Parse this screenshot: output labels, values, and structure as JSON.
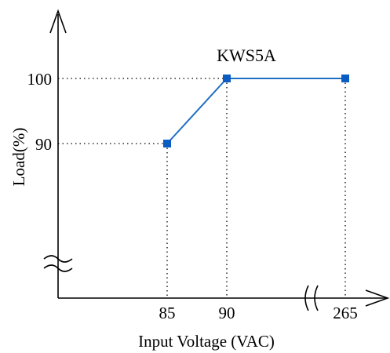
{
  "chart_data": {
    "type": "line",
    "title": "KWS5A",
    "xlabel": "Input Voltage (VAC)",
    "ylabel": "Load(%)",
    "x_ticks": [
      "85",
      "90",
      "265"
    ],
    "y_ticks": [
      "90",
      "100"
    ],
    "series": [
      {
        "points": [
          {
            "x": 85,
            "y": 90
          },
          {
            "x": 90,
            "y": 100
          },
          {
            "x": 265,
            "y": 100
          }
        ]
      }
    ],
    "x_axis_break": true,
    "y_axis_break": true,
    "guide_lines": "dotted",
    "grid": false,
    "line_color": "#1f6fc4",
    "marker_color": "#0a5cc2",
    "marker": "square"
  }
}
